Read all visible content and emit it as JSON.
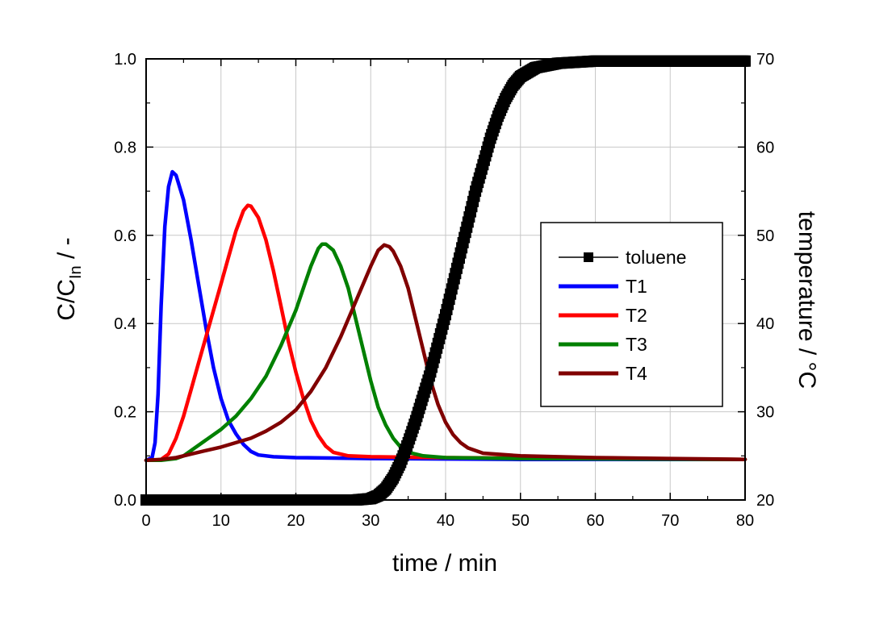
{
  "chart_data": {
    "type": "line",
    "xlabel": "time / min",
    "ylabel_main": "C/C",
    "ylabel_sub": "In",
    "ylabel_suffix": " / -",
    "y2label": "temperature / °C",
    "xlim": [
      0,
      80
    ],
    "ylim": [
      0,
      1.0
    ],
    "y2lim": [
      20,
      70
    ],
    "x_ticks": [
      "0",
      "10",
      "20",
      "30",
      "40",
      "50",
      "60",
      "70",
      "80"
    ],
    "y_ticks": [
      "0.0",
      "0.2",
      "0.4",
      "0.6",
      "0.8",
      "1.0"
    ],
    "y2_ticks": [
      "20",
      "30",
      "40",
      "50",
      "60",
      "70"
    ],
    "grid": true,
    "legend_position": "right",
    "series": [
      {
        "name": "toluene",
        "axis": "left",
        "color": "#000000",
        "marker": "square",
        "points": [
          [
            0,
            0.0
          ],
          [
            28,
            0.0
          ],
          [
            30,
            0.003
          ],
          [
            31,
            0.01
          ],
          [
            32,
            0.025
          ],
          [
            33,
            0.05
          ],
          [
            34,
            0.085
          ],
          [
            35,
            0.13
          ],
          [
            36,
            0.18
          ],
          [
            37,
            0.235
          ],
          [
            38,
            0.29
          ],
          [
            39,
            0.355
          ],
          [
            40,
            0.42
          ],
          [
            41,
            0.49
          ],
          [
            42,
            0.56
          ],
          [
            43,
            0.63
          ],
          [
            44,
            0.7
          ],
          [
            45,
            0.76
          ],
          [
            46,
            0.82
          ],
          [
            47,
            0.87
          ],
          [
            48,
            0.91
          ],
          [
            49,
            0.94
          ],
          [
            50,
            0.96
          ],
          [
            52,
            0.98
          ],
          [
            55,
            0.99
          ],
          [
            60,
            0.995
          ],
          [
            70,
            0.995
          ],
          [
            80,
            0.995
          ]
        ]
      },
      {
        "name": "T1",
        "axis": "right",
        "color": "#0000ff",
        "points": [
          [
            0,
            24.5
          ],
          [
            0.8,
            24.8
          ],
          [
            1.2,
            26.5
          ],
          [
            1.6,
            32
          ],
          [
            2.0,
            42
          ],
          [
            2.5,
            51
          ],
          [
            3.0,
            55.5
          ],
          [
            3.5,
            57.2
          ],
          [
            4.0,
            56.8
          ],
          [
            5,
            54
          ],
          [
            6,
            49.5
          ],
          [
            7,
            44.5
          ],
          [
            8,
            39.5
          ],
          [
            9,
            35
          ],
          [
            10,
            31.5
          ],
          [
            11,
            29
          ],
          [
            12,
            27.5
          ],
          [
            13,
            26.3
          ],
          [
            14,
            25.5
          ],
          [
            15,
            25.1
          ],
          [
            17,
            24.9
          ],
          [
            20,
            24.8
          ],
          [
            30,
            24.7
          ],
          [
            50,
            24.6
          ],
          [
            80,
            24.6
          ]
        ]
      },
      {
        "name": "T2",
        "axis": "right",
        "color": "#ff0000",
        "points": [
          [
            0,
            24.5
          ],
          [
            1,
            24.5
          ],
          [
            2,
            24.6
          ],
          [
            3,
            25.2
          ],
          [
            4,
            27
          ],
          [
            5,
            29.5
          ],
          [
            6,
            32.5
          ],
          [
            7,
            35.5
          ],
          [
            8,
            38.5
          ],
          [
            9,
            41.5
          ],
          [
            10,
            44.5
          ],
          [
            11,
            47.5
          ],
          [
            12,
            50.5
          ],
          [
            13,
            52.8
          ],
          [
            13.6,
            53.4
          ],
          [
            14,
            53.3
          ],
          [
            15,
            52
          ],
          [
            16,
            49.5
          ],
          [
            17,
            46
          ],
          [
            18,
            42
          ],
          [
            19,
            38
          ],
          [
            20,
            34.5
          ],
          [
            21,
            31.5
          ],
          [
            22,
            29
          ],
          [
            23,
            27.3
          ],
          [
            24,
            26.1
          ],
          [
            25,
            25.4
          ],
          [
            27,
            25
          ],
          [
            30,
            24.9
          ],
          [
            40,
            24.8
          ],
          [
            60,
            24.7
          ],
          [
            80,
            24.6
          ]
        ]
      },
      {
        "name": "T3",
        "axis": "right",
        "color": "#008000",
        "points": [
          [
            0,
            24.5
          ],
          [
            2,
            24.5
          ],
          [
            4,
            24.7
          ],
          [
            5,
            25
          ],
          [
            6,
            25.6
          ],
          [
            8,
            26.8
          ],
          [
            10,
            28
          ],
          [
            12,
            29.5
          ],
          [
            14,
            31.5
          ],
          [
            16,
            34
          ],
          [
            18,
            37.5
          ],
          [
            20,
            41.5
          ],
          [
            21,
            44
          ],
          [
            22,
            46.5
          ],
          [
            23,
            48.5
          ],
          [
            23.5,
            49
          ],
          [
            24,
            49
          ],
          [
            25,
            48.3
          ],
          [
            26,
            46.5
          ],
          [
            27,
            44
          ],
          [
            28,
            40.5
          ],
          [
            29,
            37
          ],
          [
            30,
            33.5
          ],
          [
            31,
            30.5
          ],
          [
            32,
            28.5
          ],
          [
            33,
            27
          ],
          [
            34,
            26
          ],
          [
            35,
            25.4
          ],
          [
            37,
            25
          ],
          [
            40,
            24.8
          ],
          [
            50,
            24.7
          ],
          [
            80,
            24.6
          ]
        ]
      },
      {
        "name": "T4",
        "axis": "right",
        "color": "#800000",
        "points": [
          [
            0,
            24.5
          ],
          [
            2,
            24.6
          ],
          [
            4,
            24.8
          ],
          [
            6,
            25.2
          ],
          [
            8,
            25.6
          ],
          [
            10,
            26
          ],
          [
            12,
            26.5
          ],
          [
            14,
            27
          ],
          [
            16,
            27.8
          ],
          [
            18,
            28.8
          ],
          [
            20,
            30.2
          ],
          [
            22,
            32.3
          ],
          [
            24,
            35
          ],
          [
            26,
            38.5
          ],
          [
            28,
            42.5
          ],
          [
            30,
            46.5
          ],
          [
            31,
            48.3
          ],
          [
            31.8,
            48.9
          ],
          [
            32.5,
            48.7
          ],
          [
            33,
            48.2
          ],
          [
            34,
            46.5
          ],
          [
            35,
            44
          ],
          [
            36,
            40.5
          ],
          [
            37,
            37
          ],
          [
            38,
            33.5
          ],
          [
            39,
            30.8
          ],
          [
            40,
            28.8
          ],
          [
            41,
            27.4
          ],
          [
            42,
            26.5
          ],
          [
            43,
            25.9
          ],
          [
            45,
            25.3
          ],
          [
            50,
            25
          ],
          [
            60,
            24.8
          ],
          [
            70,
            24.7
          ],
          [
            80,
            24.6
          ]
        ]
      }
    ]
  }
}
